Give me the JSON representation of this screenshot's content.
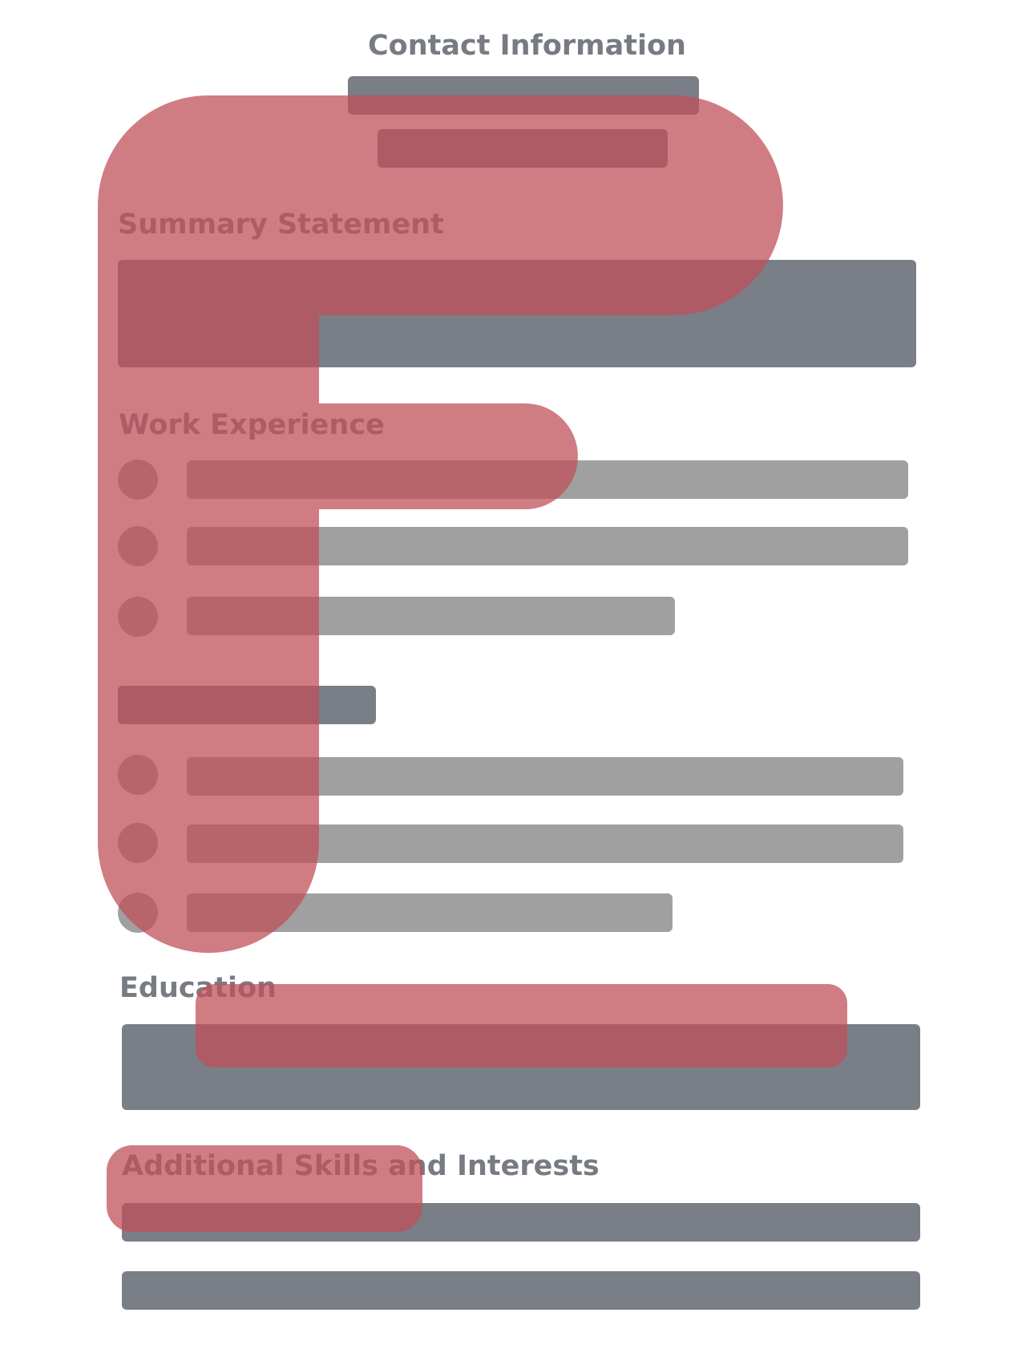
{
  "sections": {
    "contact": {
      "title": "Contact Information"
    },
    "summary": {
      "title": "Summary Statement"
    },
    "work": {
      "title": "Work Experience"
    },
    "education": {
      "title": "Education"
    },
    "skills": {
      "title": "Additional Skills and Interests"
    }
  },
  "colors": {
    "heading_text": "#777b82",
    "placeholder_dark": "#7a7e86",
    "placeholder_light": "#a0a0a0",
    "highlight": "#c0505a"
  },
  "highlight_shapes": [
    "F-shape",
    "rounded-bar",
    "rounded-tag"
  ]
}
